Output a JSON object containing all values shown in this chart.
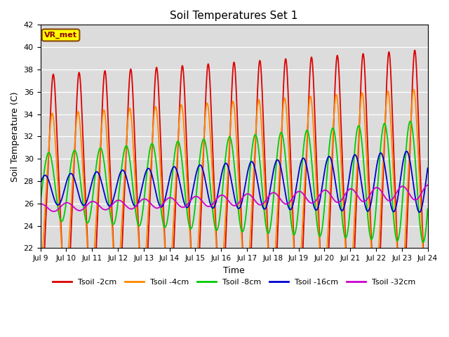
{
  "title": "Soil Temperatures Set 1",
  "xlabel": "Time",
  "ylabel": "Soil Temperature (C)",
  "ylim": [
    22,
    42
  ],
  "xlim": [
    0,
    15
  ],
  "x_tick_labels": [
    "Jul 9",
    "Jul 10",
    "Jul 11",
    "Jul 12",
    "Jul 13",
    "Jul 14",
    "Jul 15",
    "Jul 16",
    "Jul 17",
    "Jul 18",
    "Jul 19",
    "Jul 20",
    "Jul 21",
    "Jul 22",
    "Jul 23",
    "Jul 24"
  ],
  "background_color": "#dcdcdc",
  "series_colors": [
    "#dd0000",
    "#ff8800",
    "#00cc00",
    "#0000cc",
    "#cc00cc"
  ],
  "series_labels": [
    "Tsoil -2cm",
    "Tsoil -4cm",
    "Tsoil -8cm",
    "Tsoil -16cm",
    "Tsoil -32cm"
  ],
  "annotation_text": "VR_met",
  "annotation_bg": "#ffff00",
  "annotation_border": "#8B4513",
  "grid_color": "#ffffff",
  "linewidth": 1.3
}
